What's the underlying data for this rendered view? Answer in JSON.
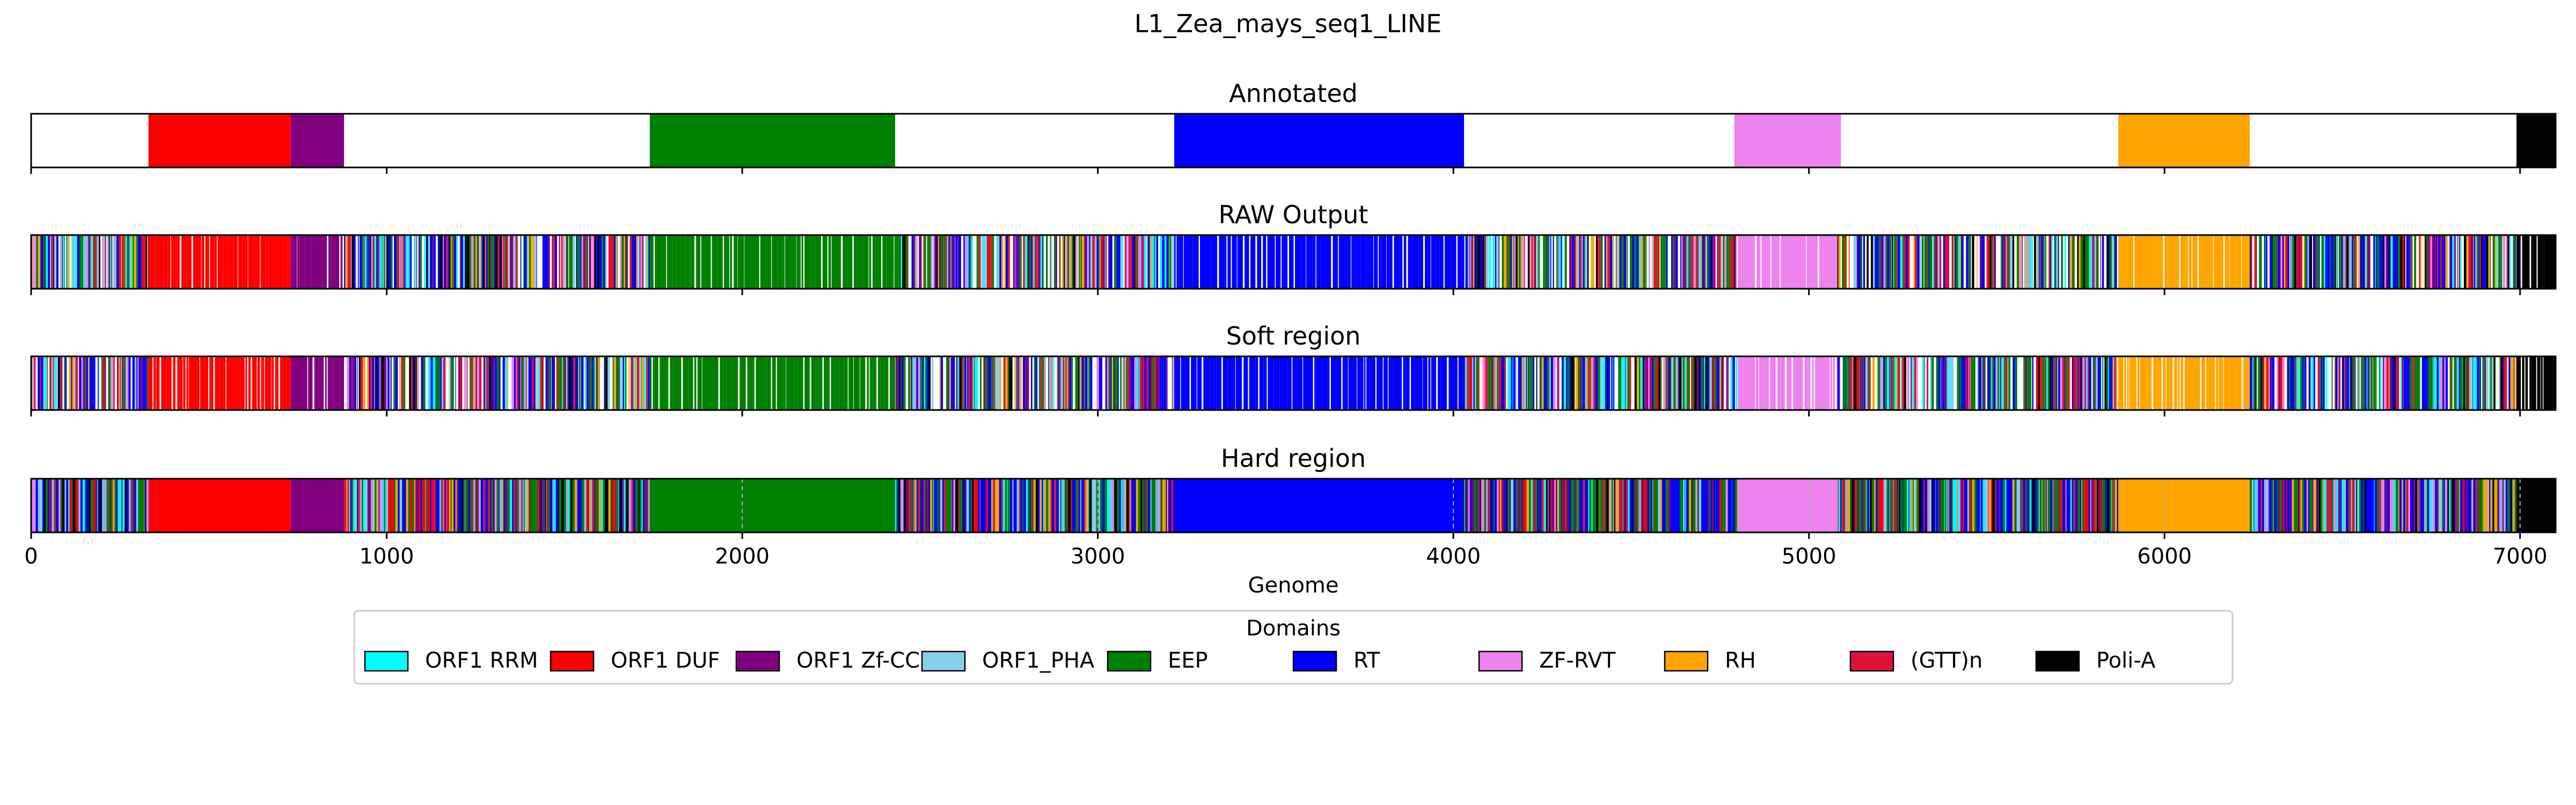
{
  "figure": {
    "title": "L1_Zea_mays_seq1_LINE"
  },
  "colors": {
    "ORF1 RRM": "#00ffff",
    "ORF1 DUF": "#ff0000",
    "ORF1 Zf-CCHC": "#800080",
    "ORF1_PHA": "#87ceeb",
    "EEP": "#008000",
    "RT": "#0000ff",
    "ZF-RVT": "#ee82ee",
    "RH": "#ffa500",
    "(GTT)n": "#dc143c",
    "Poli-A": "#000000"
  },
  "chart_data": {
    "type": "genome-track",
    "xlabel": "Genome",
    "xlim": [
      0,
      7100
    ],
    "xticks": [
      0,
      1000,
      2000,
      3000,
      4000,
      5000,
      6000,
      7000
    ],
    "legend": {
      "title": "Domains",
      "placement": "below",
      "entries": [
        "ORF1 RRM",
        "ORF1 DUF",
        "ORF1 Zf-CCHC",
        "ORF1_PHA",
        "EEP",
        "RT",
        "ZF-RVT",
        "RH",
        "(GTT)n",
        "Poli-A"
      ]
    },
    "tracks": [
      {
        "title": "Annotated",
        "segments": [
          {
            "start": 330,
            "end": 730,
            "domain": "ORF1 DUF"
          },
          {
            "start": 730,
            "end": 880,
            "domain": "ORF1 Zf-CCHC"
          },
          {
            "start": 1740,
            "end": 2430,
            "domain": "EEP"
          },
          {
            "start": 3215,
            "end": 4030,
            "domain": "RT"
          },
          {
            "start": 4790,
            "end": 5090,
            "domain": "ZF-RVT"
          },
          {
            "start": 5870,
            "end": 6240,
            "domain": "RH"
          },
          {
            "start": 6990,
            "end": 7100,
            "domain": "Poli-A"
          }
        ]
      },
      {
        "title": "RAW Output",
        "regions": [
          {
            "start": 0,
            "end": 330,
            "domain": "mixed"
          },
          {
            "start": 330,
            "end": 730,
            "domain": "ORF1 DUF",
            "gaps": true
          },
          {
            "start": 730,
            "end": 880,
            "domain": "ORF1 Zf-CCHC",
            "gaps": true
          },
          {
            "start": 880,
            "end": 1740,
            "domain": "mixed"
          },
          {
            "start": 1740,
            "end": 2430,
            "domain": "EEP",
            "gaps": true
          },
          {
            "start": 2430,
            "end": 3215,
            "domain": "mixed"
          },
          {
            "start": 3215,
            "end": 4030,
            "domain": "RT",
            "gaps": true
          },
          {
            "start": 4030,
            "end": 4800,
            "domain": "mixed"
          },
          {
            "start": 4800,
            "end": 5080,
            "domain": "ZF-RVT",
            "gaps": true
          },
          {
            "start": 5080,
            "end": 5870,
            "domain": "mixed"
          },
          {
            "start": 5870,
            "end": 6240,
            "domain": "RH",
            "gaps": true
          },
          {
            "start": 6240,
            "end": 6990,
            "domain": "mixed"
          },
          {
            "start": 6990,
            "end": 7100,
            "domain": "Poli-A",
            "gaps": true
          }
        ]
      },
      {
        "title": "Soft region",
        "regions": [
          {
            "start": 0,
            "end": 330,
            "domain": "mixed"
          },
          {
            "start": 330,
            "end": 730,
            "domain": "ORF1 DUF",
            "gaps": true
          },
          {
            "start": 730,
            "end": 880,
            "domain": "ORF1 Zf-CCHC",
            "gaps": true
          },
          {
            "start": 880,
            "end": 1740,
            "domain": "mixed"
          },
          {
            "start": 1740,
            "end": 2430,
            "domain": "EEP",
            "gaps": true
          },
          {
            "start": 2430,
            "end": 3215,
            "domain": "mixed"
          },
          {
            "start": 3215,
            "end": 4030,
            "domain": "RT",
            "gaps": true
          },
          {
            "start": 4030,
            "end": 4800,
            "domain": "mixed"
          },
          {
            "start": 4800,
            "end": 5080,
            "domain": "ZF-RVT",
            "gaps": true
          },
          {
            "start": 5080,
            "end": 5870,
            "domain": "mixed"
          },
          {
            "start": 5870,
            "end": 6240,
            "domain": "RH",
            "gaps": true
          },
          {
            "start": 6240,
            "end": 6990,
            "domain": "mixed"
          },
          {
            "start": 6990,
            "end": 7100,
            "domain": "Poli-A",
            "gaps": true
          }
        ]
      },
      {
        "title": "Hard region",
        "regions": [
          {
            "start": 0,
            "end": 330,
            "domain": "mixed"
          },
          {
            "start": 330,
            "end": 730,
            "domain": "ORF1 DUF"
          },
          {
            "start": 730,
            "end": 880,
            "domain": "ORF1 Zf-CCHC"
          },
          {
            "start": 880,
            "end": 1740,
            "domain": "mixed"
          },
          {
            "start": 1740,
            "end": 2430,
            "domain": "EEP"
          },
          {
            "start": 2430,
            "end": 3215,
            "domain": "mixed"
          },
          {
            "start": 3215,
            "end": 4030,
            "domain": "RT"
          },
          {
            "start": 4030,
            "end": 4800,
            "domain": "mixed"
          },
          {
            "start": 4800,
            "end": 5080,
            "domain": "ZF-RVT"
          },
          {
            "start": 5080,
            "end": 5870,
            "domain": "mixed"
          },
          {
            "start": 5870,
            "end": 6240,
            "domain": "RH"
          },
          {
            "start": 6240,
            "end": 6990,
            "domain": "mixed"
          },
          {
            "start": 6990,
            "end": 7100,
            "domain": "Poli-A"
          }
        ]
      }
    ]
  }
}
